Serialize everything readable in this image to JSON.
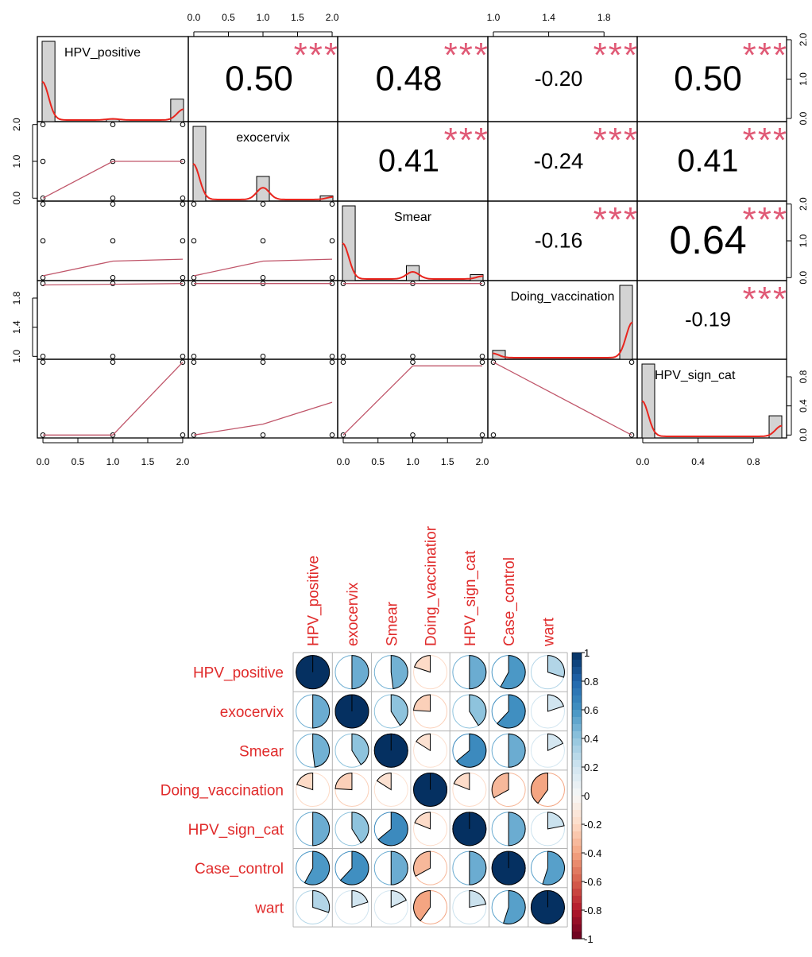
{
  "chart_data": [
    {
      "type": "scatter",
      "subtype": "correlation-pairs-matrix",
      "variables": [
        "HPV_positive",
        "exocervix",
        "Smear",
        "Doing_vaccination",
        "HPV_sign_cat"
      ],
      "diagonal_type": "histogram-with-density",
      "histograms": [
        {
          "variable": "HPV_positive",
          "bins": [
            {
              "x": 0.0,
              "h": 1.0
            },
            {
              "x": 1.0,
              "h": 0.03
            },
            {
              "x": 2.0,
              "h": 0.28
            }
          ]
        },
        {
          "variable": "exocervix",
          "bins": [
            {
              "x": 0.0,
              "h": 1.0
            },
            {
              "x": 1.0,
              "h": 0.33
            },
            {
              "x": 2.0,
              "h": 0.07
            }
          ]
        },
        {
          "variable": "Smear",
          "bins": [
            {
              "x": 0.0,
              "h": 1.0
            },
            {
              "x": 1.0,
              "h": 0.2
            },
            {
              "x": 2.0,
              "h": 0.08
            }
          ]
        },
        {
          "variable": "Doing_vaccination",
          "bins": [
            {
              "x": 1.0,
              "h": 0.12
            },
            {
              "x": 2.0,
              "h": 1.0
            }
          ]
        },
        {
          "variable": "HPV_sign_cat",
          "bins": [
            {
              "x": 0.0,
              "h": 1.0
            },
            {
              "x": 1.0,
              "h": 0.3
            }
          ]
        }
      ],
      "upper_correlations": [
        {
          "row": "HPV_positive",
          "col": "exocervix",
          "r": "0.50",
          "stars": "***",
          "size": 1.0
        },
        {
          "row": "HPV_positive",
          "col": "Smear",
          "r": "0.48",
          "stars": "***",
          "size": 0.97
        },
        {
          "row": "HPV_positive",
          "col": "Doing_vaccination",
          "r": "-0.20",
          "stars": "***",
          "size": 0.42
        },
        {
          "row": "HPV_positive",
          "col": "HPV_sign_cat",
          "r": "0.50",
          "stars": "***",
          "size": 1.0
        },
        {
          "row": "exocervix",
          "col": "Smear",
          "r": "0.41",
          "stars": "***",
          "size": 0.85
        },
        {
          "row": "exocervix",
          "col": "Doing_vaccination",
          "r": "-0.24",
          "stars": "***",
          "size": 0.45
        },
        {
          "row": "exocervix",
          "col": "HPV_sign_cat",
          "r": "0.41",
          "stars": "***",
          "size": 0.85
        },
        {
          "row": "Smear",
          "col": "Doing_vaccination",
          "r": "-0.16",
          "stars": "***",
          "size": 0.42
        },
        {
          "row": "Smear",
          "col": "HPV_sign_cat",
          "r": "0.64",
          "stars": "***",
          "size": 1.2
        },
        {
          "row": "Doing_vaccination",
          "col": "HPV_sign_cat",
          "r": "-0.19",
          "stars": "***",
          "size": 0.38
        }
      ],
      "lower_scatter_points": [
        {
          "row": "exocervix",
          "col": "HPV_positive",
          "x": [
            0,
            1,
            2,
            0,
            1,
            2,
            0,
            1,
            2
          ],
          "y": [
            2,
            2,
            2,
            1,
            1,
            1,
            0,
            0,
            0
          ]
        },
        {
          "row": "Smear",
          "col": "HPV_positive",
          "x": [
            0,
            1,
            2,
            0,
            1,
            2,
            0,
            1,
            2
          ],
          "y": [
            2,
            2,
            2,
            1,
            1,
            1,
            0,
            0,
            0
          ]
        },
        {
          "row": "Smear",
          "col": "exocervix",
          "x": [
            0,
            1,
            2,
            0,
            1,
            2,
            0,
            1,
            2
          ],
          "y": [
            2,
            2,
            2,
            1,
            1,
            1,
            0,
            0,
            0
          ]
        },
        {
          "row": "Doing_vaccination",
          "col": "HPV_positive",
          "x": [
            0,
            1,
            2,
            0,
            1,
            2
          ],
          "y": [
            2,
            2,
            2,
            1,
            1,
            1
          ]
        },
        {
          "row": "Doing_vaccination",
          "col": "exocervix",
          "x": [
            0,
            1,
            2,
            0,
            1,
            2
          ],
          "y": [
            2,
            2,
            2,
            1,
            1,
            1
          ]
        },
        {
          "row": "Doing_vaccination",
          "col": "Smear",
          "x": [
            0,
            1,
            2,
            0,
            1,
            2
          ],
          "y": [
            2,
            2,
            2,
            1,
            1,
            1
          ]
        },
        {
          "row": "HPV_sign_cat",
          "col": "HPV_positive",
          "x": [
            0,
            1,
            2,
            0,
            1,
            2
          ],
          "y": [
            1,
            1,
            1,
            0,
            0,
            0
          ]
        },
        {
          "row": "HPV_sign_cat",
          "col": "exocervix",
          "x": [
            0,
            1,
            2,
            0,
            1,
            2
          ],
          "y": [
            1,
            1,
            1,
            0,
            0,
            0
          ]
        },
        {
          "row": "HPV_sign_cat",
          "col": "Smear",
          "x": [
            0,
            1,
            2,
            0,
            1,
            2
          ],
          "y": [
            1,
            1,
            1,
            0,
            0,
            0
          ]
        },
        {
          "row": "HPV_sign_cat",
          "col": "Doing_vaccination",
          "x": [
            1,
            2,
            1,
            2
          ],
          "y": [
            1,
            1,
            0,
            0
          ]
        }
      ],
      "lower_fit_lines": [
        {
          "row": "exocervix",
          "col": "HPV_positive",
          "x": [
            0,
            1,
            2
          ],
          "y": [
            0,
            1,
            1
          ]
        },
        {
          "row": "Smear",
          "col": "HPV_positive",
          "x": [
            0,
            1,
            2
          ],
          "y": [
            0.05,
            0.45,
            0.5
          ]
        },
        {
          "row": "Smear",
          "col": "exocervix",
          "x": [
            0,
            1,
            2
          ],
          "y": [
            0.05,
            0.45,
            0.5
          ]
        },
        {
          "row": "Doing_vaccination",
          "col": "HPV_positive",
          "x": [
            0,
            1,
            2
          ],
          "y": [
            1.98,
            1.99,
            2.0
          ]
        },
        {
          "row": "Doing_vaccination",
          "col": "exocervix",
          "x": [
            0,
            1,
            2
          ],
          "y": [
            2.0,
            2.0,
            2.0
          ]
        },
        {
          "row": "Doing_vaccination",
          "col": "Smear",
          "x": [
            0,
            1,
            2
          ],
          "y": [
            2.0,
            2.0,
            2.0
          ]
        },
        {
          "row": "HPV_sign_cat",
          "col": "HPV_positive",
          "x": [
            0,
            1,
            2
          ],
          "y": [
            0,
            0,
            1
          ]
        },
        {
          "row": "HPV_sign_cat",
          "col": "exocervix",
          "x": [
            0,
            1,
            2
          ],
          "y": [
            0,
            0.15,
            0.45
          ]
        },
        {
          "row": "HPV_sign_cat",
          "col": "Smear",
          "x": [
            0,
            1,
            2
          ],
          "y": [
            0,
            0.95,
            0.95
          ]
        },
        {
          "row": "HPV_sign_cat",
          "col": "Doing_vaccination",
          "x": [
            1,
            2
          ],
          "y": [
            1,
            0
          ]
        }
      ],
      "axes": {
        "top": [
          {
            "col": 1,
            "ticks": [
              "0.0",
              "0.5",
              "1.0",
              "1.5",
              "2.0"
            ]
          },
          {
            "col": 3,
            "ticks": [
              "1.0",
              "1.4",
              "1.8"
            ]
          }
        ],
        "bottom": [
          {
            "col": 0,
            "ticks": [
              "0.0",
              "0.5",
              "1.0",
              "1.5",
              "2.0"
            ]
          },
          {
            "col": 2,
            "ticks": [
              "0.0",
              "0.5",
              "1.0",
              "1.5",
              "2.0"
            ]
          },
          {
            "col": 4,
            "ticks": [
              "0.0",
              "0.4",
              "0.8"
            ]
          }
        ],
        "left": [
          {
            "row": 1,
            "ticks": [
              "0.0",
              "1.0",
              "2.0"
            ]
          },
          {
            "row": 3,
            "ticks": [
              "1.0",
              "1.4",
              "1.8"
            ]
          }
        ],
        "right": [
          {
            "row": 0,
            "ticks": [
              "0.0",
              "1.0",
              "2.0"
            ]
          },
          {
            "row": 2,
            "ticks": [
              "0.0",
              "1.0",
              "2.0"
            ]
          },
          {
            "row": 4,
            "ticks": [
              "0.0",
              "0.4",
              "0.8"
            ]
          }
        ]
      },
      "colors": {
        "density": "#e8251e",
        "fit": "#c0566a",
        "stars": "#e05a76",
        "hist_fill": "#d3d3d3"
      }
    },
    {
      "type": "heatmap",
      "subtype": "corrplot-pie",
      "variables": [
        "HPV_positive",
        "exocervix",
        "Smear",
        "Doing_vaccination",
        "HPV_sign_cat",
        "Case_control",
        "wart"
      ],
      "col_labels": [
        "HPV_positive",
        "exocervix",
        "Smear",
        "Doing_vaccinatior",
        "HPV_sign_cat",
        "Case_control",
        "wart"
      ],
      "matrix": [
        [
          1.0,
          0.5,
          0.48,
          -0.2,
          0.5,
          0.58,
          0.3
        ],
        [
          0.5,
          1.0,
          0.41,
          -0.24,
          0.41,
          0.62,
          0.2
        ],
        [
          0.48,
          0.41,
          1.0,
          -0.16,
          0.64,
          0.5,
          0.18
        ],
        [
          -0.2,
          -0.24,
          -0.16,
          1.0,
          -0.19,
          -0.33,
          -0.4
        ],
        [
          0.5,
          0.41,
          0.64,
          -0.19,
          1.0,
          0.5,
          0.22
        ],
        [
          0.58,
          0.62,
          0.5,
          -0.33,
          0.5,
          1.0,
          0.55
        ],
        [
          0.3,
          0.2,
          0.18,
          -0.4,
          0.22,
          0.55,
          1.0
        ]
      ],
      "legend": {
        "position": "right",
        "ticks": [
          "1",
          "0.8",
          "0.6",
          "0.4",
          "0.2",
          "0",
          "-0.2",
          "-0.4",
          "-0.6",
          "-0.8",
          "-1"
        ],
        "range": [
          -1,
          1
        ]
      },
      "label_color": "#e02b2b",
      "grid": true
    }
  ]
}
